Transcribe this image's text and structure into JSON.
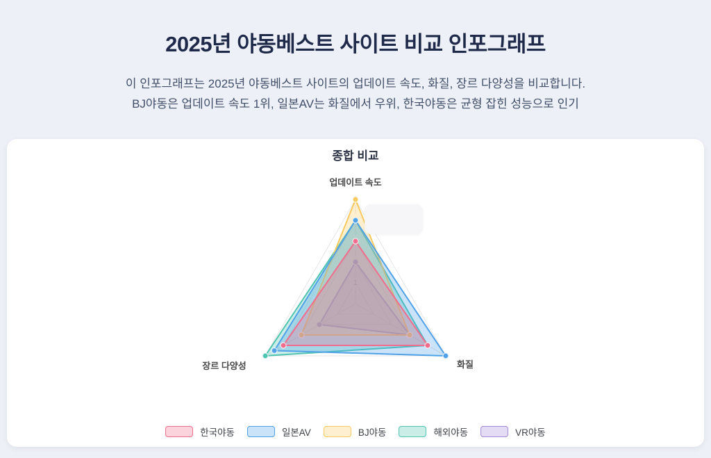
{
  "header": {
    "title": "2025년 야동베스트 사이트 비교 인포그래프",
    "subtitle_line1": "이 인포그래프는 2025년 야동베스트 사이트의 업데이트 속도, 화질, 장르 다양성을 비교합니다.",
    "subtitle_line2": "BJ야동은 업데이트 속도 1위, 일본AV는 화질에서 우위, 한국야동은 균형 잡힌 성능으로 인기"
  },
  "chart_data": {
    "type": "radar",
    "title": "종합 비교",
    "axes": [
      "업데이트 속도",
      "화질",
      "장르 다양성"
    ],
    "scale": {
      "min": 0,
      "max": 5,
      "ticks": [
        1,
        2,
        3,
        4,
        5
      ]
    },
    "series": [
      {
        "name": "한국야동",
        "values": [
          3,
          4,
          4
        ],
        "color": "#F26D8D"
      },
      {
        "name": "일본AV",
        "values": [
          4,
          5,
          4.5
        ],
        "color": "#4FA1E8"
      },
      {
        "name": "BJ야동",
        "values": [
          5,
          3,
          3
        ],
        "color": "#F7C95F"
      },
      {
        "name": "해외야동",
        "values": [
          4,
          4,
          5
        ],
        "color": "#4FC4B0"
      },
      {
        "name": "VR야동",
        "values": [
          2,
          3,
          2
        ],
        "color": "#A38BD9"
      }
    ],
    "legend_position": "bottom",
    "grid": true,
    "fill_opacity": 0.3,
    "grid_color": "#e5e5e5",
    "tick_color": "#a0a4ab",
    "axis_label_color": "#484848"
  },
  "page_colors": {
    "background": "#edf0f6",
    "card": "#ffffff",
    "title_text": "#1f2a4a",
    "subtitle_text": "#414e68"
  }
}
